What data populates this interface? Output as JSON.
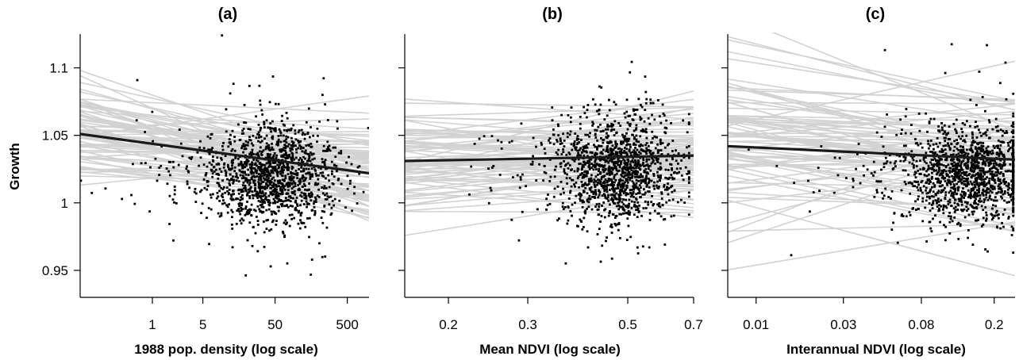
{
  "chart_data": [
    {
      "type": "scatter",
      "title": "(a)",
      "xlabel": "1988 pop. density (log scale)",
      "ylabel": "Growth",
      "x_scale": "log",
      "xlim": [
        0.1,
        1000
      ],
      "ylim": [
        0.93,
        1.125
      ],
      "xticks": [
        1,
        5,
        50,
        500
      ],
      "xtick_labels": [
        "1",
        "5",
        "50",
        "500"
      ],
      "yticks": [
        0.95,
        1,
        1.05,
        1.1
      ],
      "ytick_labels": [
        "0.95",
        "1",
        "1.05",
        "1.1"
      ],
      "grid": false,
      "center_x": 50,
      "center_y": 1.02,
      "spread_x_log10": 0.45,
      "spread_y": 0.018,
      "mean_line": {
        "x": [
          0.1,
          1000
        ],
        "y": [
          1.051,
          1.022
        ]
      },
      "group_lines": {
        "count": 80,
        "slope_mean": -0.0072,
        "slope_sd": 0.006,
        "intercept_sd": 0.014
      }
    },
    {
      "type": "scatter",
      "title": "(b)",
      "xlabel": "Mean NDVI (log scale)",
      "ylabel": "",
      "x_scale": "log",
      "xlim": [
        0.16,
        0.7
      ],
      "ylim": [
        0.93,
        1.125
      ],
      "xticks": [
        0.2,
        0.3,
        0.5,
        0.7
      ],
      "xtick_labels": [
        "0.2",
        "0.3",
        "0.5",
        "0.7"
      ],
      "grid": false,
      "center_x": 0.48,
      "center_y": 1.025,
      "spread_x_log10": 0.065,
      "spread_y": 0.02,
      "mean_line": {
        "x": [
          0.16,
          0.7
        ],
        "y": [
          1.031,
          1.035
        ]
      },
      "group_lines": {
        "count": 80,
        "slope_mean": 0.006,
        "slope_sd": 0.03,
        "intercept_sd": 0.016
      }
    },
    {
      "type": "scatter",
      "title": "(c)",
      "xlabel": "Interannual NDVI (log scale)",
      "ylabel": "",
      "x_scale": "log",
      "xlim": [
        0.007,
        0.26
      ],
      "ylim": [
        0.93,
        1.125
      ],
      "xticks": [
        0.01,
        0.03,
        0.08,
        0.2
      ],
      "xtick_labels": [
        "0.01",
        "0.03",
        "0.08",
        "0.2"
      ],
      "grid": false,
      "center_x": 0.15,
      "center_y": 1.022,
      "spread_x_log10": 0.18,
      "spread_y": 0.017,
      "mean_line": {
        "x": [
          0.007,
          0.26
        ],
        "y": [
          1.042,
          1.032
        ]
      },
      "group_lines": {
        "count": 80,
        "slope_mean": -0.005,
        "slope_sd": 0.02,
        "intercept_sd": 0.026
      }
    }
  ]
}
